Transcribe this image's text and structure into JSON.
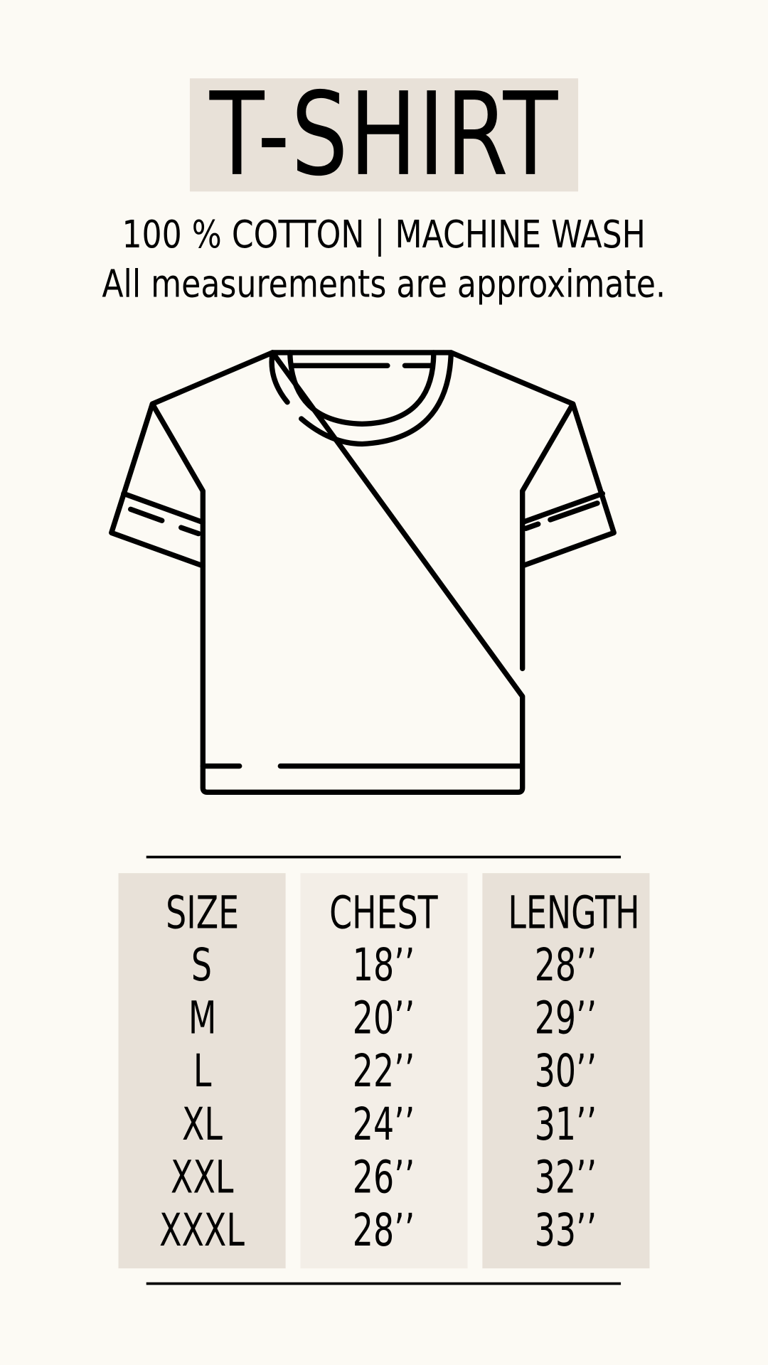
{
  "title": "T-SHIRT",
  "subtitle": "100 % COTTON | MACHINE WASH",
  "note": "All measurements are approximate.",
  "colors": {
    "background": "#fcfaf4",
    "panel_dark": "#e8e1d8",
    "panel_light": "#f3eee7",
    "ink": "#000000"
  },
  "illustration": "t-shirt-outline-icon",
  "table": {
    "headers": [
      "SIZE",
      "CHEST",
      "LENGTH"
    ],
    "rows": [
      [
        "S",
        "18’’",
        "28’’"
      ],
      [
        "M",
        "20’’",
        "29’’"
      ],
      [
        "L",
        "22’’",
        "30’’"
      ],
      [
        "XL",
        "24’’",
        "31’’"
      ],
      [
        "XXL",
        "26’’",
        "32’’"
      ],
      [
        "XXXL",
        "28’’",
        "33’’"
      ]
    ]
  }
}
